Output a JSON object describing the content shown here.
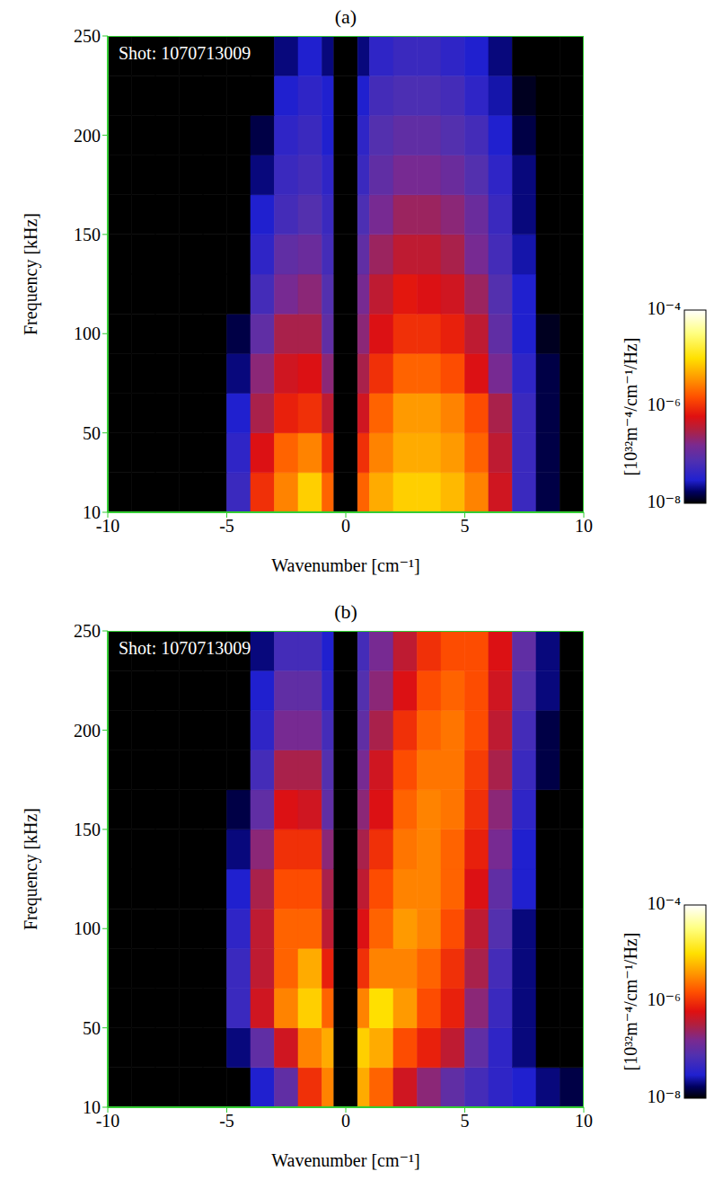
{
  "chart_data": [
    {
      "type": "heatmap",
      "title": "(a)",
      "annotation": "Shot: 1070713009",
      "x_label": "Wavenumber [cm⁻¹]",
      "y_label": "Frequency [kHz]",
      "xlim": [
        -10,
        10
      ],
      "xticks": [
        -10,
        -5,
        0,
        5,
        10
      ],
      "ylim": [
        10,
        250
      ],
      "yticks": [
        10,
        50,
        100,
        150,
        200,
        250
      ],
      "x_edges": [
        -10,
        -9,
        -8,
        -7,
        -6,
        -5,
        -4,
        -3,
        -2,
        -1,
        -0.5,
        0.5,
        1,
        2,
        3,
        4,
        5,
        6,
        7,
        8,
        9,
        10
      ],
      "y_edges": [
        10,
        30,
        50,
        70,
        90,
        110,
        130,
        150,
        170,
        190,
        210,
        230,
        250
      ],
      "cells": [
        [
          1e-08,
          1e-08,
          1e-08,
          1e-08,
          1e-08,
          5e-08,
          1e-06,
          3e-06,
          8e-06,
          2e-06,
          1e-08,
          2e-06,
          5e-06,
          8e-06,
          8e-06,
          6e-06,
          3e-06,
          5e-07,
          5e-08,
          1.5e-08,
          1e-08
        ],
        [
          1e-08,
          1e-08,
          1e-08,
          1e-08,
          1e-08,
          4e-08,
          6e-07,
          2e-06,
          3e-06,
          1e-06,
          1e-08,
          1e-06,
          3e-06,
          5e-06,
          5e-06,
          4e-06,
          2e-06,
          4e-07,
          5e-08,
          1.5e-08,
          1e-08
        ],
        [
          1e-08,
          1e-08,
          1e-08,
          1e-08,
          1e-08,
          3e-08,
          3e-07,
          8e-07,
          1e-06,
          4e-07,
          1e-08,
          5e-07,
          2e-06,
          4e-06,
          4e-06,
          3e-06,
          1.5e-06,
          3e-07,
          5e-08,
          1.5e-08,
          1e-08
        ],
        [
          1e-08,
          1e-08,
          1e-08,
          1e-08,
          1e-08,
          2e-08,
          2e-07,
          5e-07,
          6e-07,
          2e-07,
          1e-08,
          3e-07,
          1e-06,
          2e-06,
          2e-06,
          1.5e-06,
          6e-07,
          1.5e-07,
          4e-08,
          1.5e-08,
          1e-08
        ],
        [
          1e-08,
          1e-08,
          1e-08,
          1e-08,
          1e-08,
          1.5e-08,
          1e-07,
          3e-07,
          3e-07,
          1e-07,
          1e-08,
          2e-07,
          6e-07,
          1e-06,
          1e-06,
          8e-07,
          4e-07,
          1e-07,
          3e-08,
          1.2e-08,
          1e-08
        ],
        [
          1e-08,
          1e-08,
          1e-08,
          1e-08,
          1e-08,
          1e-08,
          6e-08,
          1.5e-07,
          2e-07,
          8e-08,
          1e-08,
          1.5e-07,
          4e-07,
          7e-07,
          6e-07,
          5e-07,
          2.5e-07,
          8e-08,
          3e-08,
          1e-08,
          1e-08
        ],
        [
          1e-08,
          1e-08,
          1e-08,
          1e-08,
          1e-08,
          1e-08,
          4e-08,
          1e-07,
          1.2e-07,
          6e-08,
          1e-08,
          1e-07,
          2.5e-07,
          4e-07,
          4e-07,
          3e-07,
          1.5e-07,
          6e-08,
          2.5e-08,
          1e-08,
          1e-08
        ],
        [
          1e-08,
          1e-08,
          1e-08,
          1e-08,
          1e-08,
          1e-08,
          3e-08,
          6e-08,
          8e-08,
          5e-08,
          1e-08,
          7e-08,
          1.5e-07,
          2.5e-07,
          2.5e-07,
          2e-07,
          1.2e-07,
          5e-08,
          2e-08,
          1e-08,
          1e-08
        ],
        [
          1e-08,
          1e-08,
          1e-08,
          1e-08,
          1e-08,
          1e-08,
          2e-08,
          5e-08,
          6e-08,
          4e-08,
          1e-08,
          5e-08,
          1e-07,
          1.5e-07,
          1.5e-07,
          1.2e-07,
          8e-08,
          4e-08,
          2e-08,
          1e-08,
          1e-08
        ],
        [
          1e-08,
          1e-08,
          1e-08,
          1e-08,
          1e-08,
          1e-08,
          1.5e-08,
          4e-08,
          5e-08,
          3e-08,
          1e-08,
          4e-08,
          8e-08,
          1e-07,
          1e-07,
          8e-08,
          6e-08,
          3e-08,
          1.5e-08,
          1e-08,
          1e-08
        ],
        [
          1e-08,
          1e-08,
          1e-08,
          1e-08,
          1e-08,
          1e-08,
          1e-08,
          3e-08,
          4e-08,
          3e-08,
          1e-08,
          3e-08,
          6e-08,
          7e-08,
          7e-08,
          6e-08,
          4e-08,
          2.5e-08,
          1.2e-08,
          1e-08,
          1e-08
        ],
        [
          1e-08,
          1e-08,
          1e-08,
          1e-08,
          1e-08,
          1e-08,
          1e-08,
          2e-08,
          3e-08,
          2e-08,
          1e-08,
          2e-08,
          4e-08,
          5e-08,
          5e-08,
          4e-08,
          3e-08,
          2e-08,
          1e-08,
          1e-08,
          1e-08
        ]
      ],
      "colorbar": {
        "range": [
          1e-08,
          0.0001
        ],
        "log": true,
        "label": "[10³²m⁻⁴/cm⁻¹/Hz]",
        "ticks": [
          {
            "value": 0.0001,
            "label": "10⁻⁴"
          },
          {
            "value": 1e-06,
            "label": "10⁻⁶"
          },
          {
            "value": 1e-08,
            "label": "10⁻⁸"
          }
        ]
      }
    },
    {
      "type": "heatmap",
      "title": "(b)",
      "annotation": "Shot: 1070713009",
      "x_label": "Wavenumber [cm⁻¹]",
      "y_label": "Frequency [kHz]",
      "xlim": [
        -10,
        10
      ],
      "xticks": [
        -10,
        -5,
        0,
        5,
        10
      ],
      "ylim": [
        10,
        250
      ],
      "yticks": [
        10,
        50,
        100,
        150,
        200,
        250
      ],
      "x_edges": [
        -10,
        -9,
        -8,
        -7,
        -6,
        -5,
        -4,
        -3,
        -2,
        -1,
        -0.5,
        0.5,
        1,
        2,
        3,
        4,
        5,
        6,
        7,
        8,
        9,
        10
      ],
      "y_edges": [
        10,
        30,
        50,
        70,
        90,
        110,
        130,
        150,
        170,
        190,
        210,
        230,
        250
      ],
      "cells": [
        [
          1e-08,
          1e-08,
          1e-08,
          1e-08,
          1e-08,
          1e-08,
          3e-08,
          1e-07,
          1e-06,
          3e-06,
          1e-08,
          5e-06,
          2e-06,
          5e-07,
          2e-07,
          1e-07,
          6e-08,
          4e-08,
          3e-08,
          2e-08,
          1.5e-08
        ],
        [
          1e-08,
          1e-08,
          1e-08,
          1e-08,
          1e-08,
          2e-08,
          1e-07,
          5e-07,
          3e-06,
          5e-06,
          1e-08,
          8e-06,
          5e-06,
          1.5e-06,
          8e-07,
          4e-07,
          1e-07,
          4e-08,
          2e-08,
          1e-08,
          1e-08
        ],
        [
          1e-08,
          1e-08,
          1e-08,
          1e-08,
          1e-08,
          5e-08,
          5e-07,
          3e-06,
          8e-06,
          2e-06,
          1e-08,
          3e-06,
          1e-05,
          4e-06,
          1.5e-06,
          8e-07,
          2e-07,
          5e-08,
          2e-08,
          1e-08,
          1e-08
        ],
        [
          1e-08,
          1e-08,
          1e-08,
          1e-08,
          1e-08,
          5e-08,
          4e-07,
          2e-06,
          5e-06,
          8e-07,
          1e-08,
          1e-06,
          3e-06,
          3e-06,
          2e-06,
          1e-06,
          3e-07,
          6e-08,
          2e-08,
          1e-08,
          1e-08
        ],
        [
          1e-08,
          1e-08,
          1e-08,
          1e-08,
          1e-08,
          4e-08,
          4e-07,
          2e-06,
          2e-06,
          4e-07,
          1e-08,
          6e-07,
          2e-06,
          4e-06,
          3e-06,
          1.5e-06,
          4e-07,
          8e-08,
          2e-08,
          1e-08,
          1e-08
        ],
        [
          1e-08,
          1e-08,
          1e-08,
          1e-08,
          1e-08,
          3e-08,
          3e-07,
          1.5e-06,
          1.5e-06,
          3e-07,
          1e-08,
          4e-07,
          1.5e-06,
          3e-06,
          3e-06,
          2e-06,
          6e-07,
          1e-07,
          3e-08,
          1e-08,
          1e-08
        ],
        [
          1e-08,
          1e-08,
          1e-08,
          1e-08,
          1e-08,
          2e-08,
          2e-07,
          1e-06,
          1e-06,
          2e-07,
          1e-08,
          3e-07,
          1e-06,
          2.5e-06,
          3e-06,
          2e-06,
          8e-07,
          1.5e-07,
          3e-08,
          1e-08,
          1e-08
        ],
        [
          1e-08,
          1e-08,
          1e-08,
          1e-08,
          1e-08,
          1.5e-08,
          1e-07,
          6e-07,
          5e-07,
          1e-07,
          1e-08,
          2e-07,
          6e-07,
          2e-06,
          3e-06,
          2.5e-06,
          1e-06,
          2e-07,
          4e-08,
          1e-08,
          1e-08
        ],
        [
          1e-08,
          1e-08,
          1e-08,
          1e-08,
          1e-08,
          1e-08,
          6e-08,
          3e-07,
          3e-07,
          8e-08,
          1e-08,
          1.5e-07,
          5e-07,
          1.5e-06,
          2.5e-06,
          2.5e-06,
          1.2e-06,
          3e-07,
          5e-08,
          1.5e-08,
          1e-08
        ],
        [
          1e-08,
          1e-08,
          1e-08,
          1e-08,
          1e-08,
          1e-08,
          4e-08,
          1.5e-07,
          1.5e-07,
          6e-08,
          1e-08,
          1e-07,
          3e-07,
          1e-06,
          2e-06,
          2.5e-06,
          1.5e-06,
          4e-07,
          6e-08,
          1.5e-08,
          1e-08
        ],
        [
          1e-08,
          1e-08,
          1e-08,
          1e-08,
          1e-08,
          1e-08,
          3e-08,
          1e-07,
          1e-07,
          4e-08,
          1e-08,
          8e-08,
          2e-07,
          6e-07,
          1.5e-06,
          2e-06,
          1.5e-06,
          5e-07,
          8e-08,
          2e-08,
          1e-08
        ],
        [
          1e-08,
          1e-08,
          1e-08,
          1e-08,
          1e-08,
          1e-08,
          2e-08,
          6e-08,
          6e-08,
          3e-08,
          1e-08,
          6e-08,
          1.5e-07,
          4e-07,
          1e-06,
          1.5e-06,
          1.5e-06,
          6e-07,
          1e-07,
          2e-08,
          1e-08
        ]
      ],
      "colorbar": {
        "range": [
          1e-08,
          0.0001
        ],
        "log": true,
        "label": "[10³²m⁻⁴/cm⁻¹/Hz]",
        "ticks": [
          {
            "value": 0.0001,
            "label": "10⁻⁴"
          },
          {
            "value": 1e-06,
            "label": "10⁻⁶"
          },
          {
            "value": 1e-08,
            "label": "10⁻⁸"
          }
        ]
      }
    }
  ]
}
